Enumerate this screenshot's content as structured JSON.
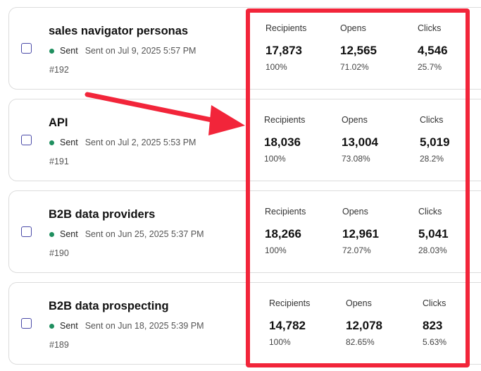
{
  "campaigns": [
    {
      "title": "sales navigator personas",
      "status": "Sent",
      "sent_on": "Sent on Jul 9, 2025 5:57 PM",
      "number": "#192",
      "stats": [
        {
          "label": "Recipients",
          "value": "17,873",
          "pct": "100%"
        },
        {
          "label": "Opens",
          "value": "12,565",
          "pct": "71.02%"
        },
        {
          "label": "Clicks",
          "value": "4,546",
          "pct": "25.7%"
        }
      ]
    },
    {
      "title": "API",
      "status": "Sent",
      "sent_on": "Sent on Jul 2, 2025 5:53 PM",
      "number": "#191",
      "stats": [
        {
          "label": "Recipients",
          "value": "18,036",
          "pct": "100%"
        },
        {
          "label": "Opens",
          "value": "13,004",
          "pct": "73.08%"
        },
        {
          "label": "Clicks",
          "value": "5,019",
          "pct": "28.2%"
        }
      ]
    },
    {
      "title": "B2B data providers",
      "status": "Sent",
      "sent_on": "Sent on Jun 25, 2025 5:37 PM",
      "number": "#190",
      "stats": [
        {
          "label": "Recipients",
          "value": "18,266",
          "pct": "100%"
        },
        {
          "label": "Opens",
          "value": "12,961",
          "pct": "72.07%"
        },
        {
          "label": "Clicks",
          "value": "5,041",
          "pct": "28.03%"
        }
      ]
    },
    {
      "title": "B2B data prospecting",
      "status": "Sent",
      "sent_on": "Sent on Jun 18, 2025 5:39 PM",
      "number": "#189",
      "stats": [
        {
          "label": "Recipients",
          "value": "14,782",
          "pct": "100%"
        },
        {
          "label": "Opens",
          "value": "12,078",
          "pct": "82.65%"
        },
        {
          "label": "Clicks",
          "value": "823",
          "pct": "5.63%"
        }
      ]
    }
  ],
  "colors": {
    "highlight": "#f2253a",
    "sent_dot": "#1f8f5f",
    "checkbox": "#4a4aa8"
  }
}
